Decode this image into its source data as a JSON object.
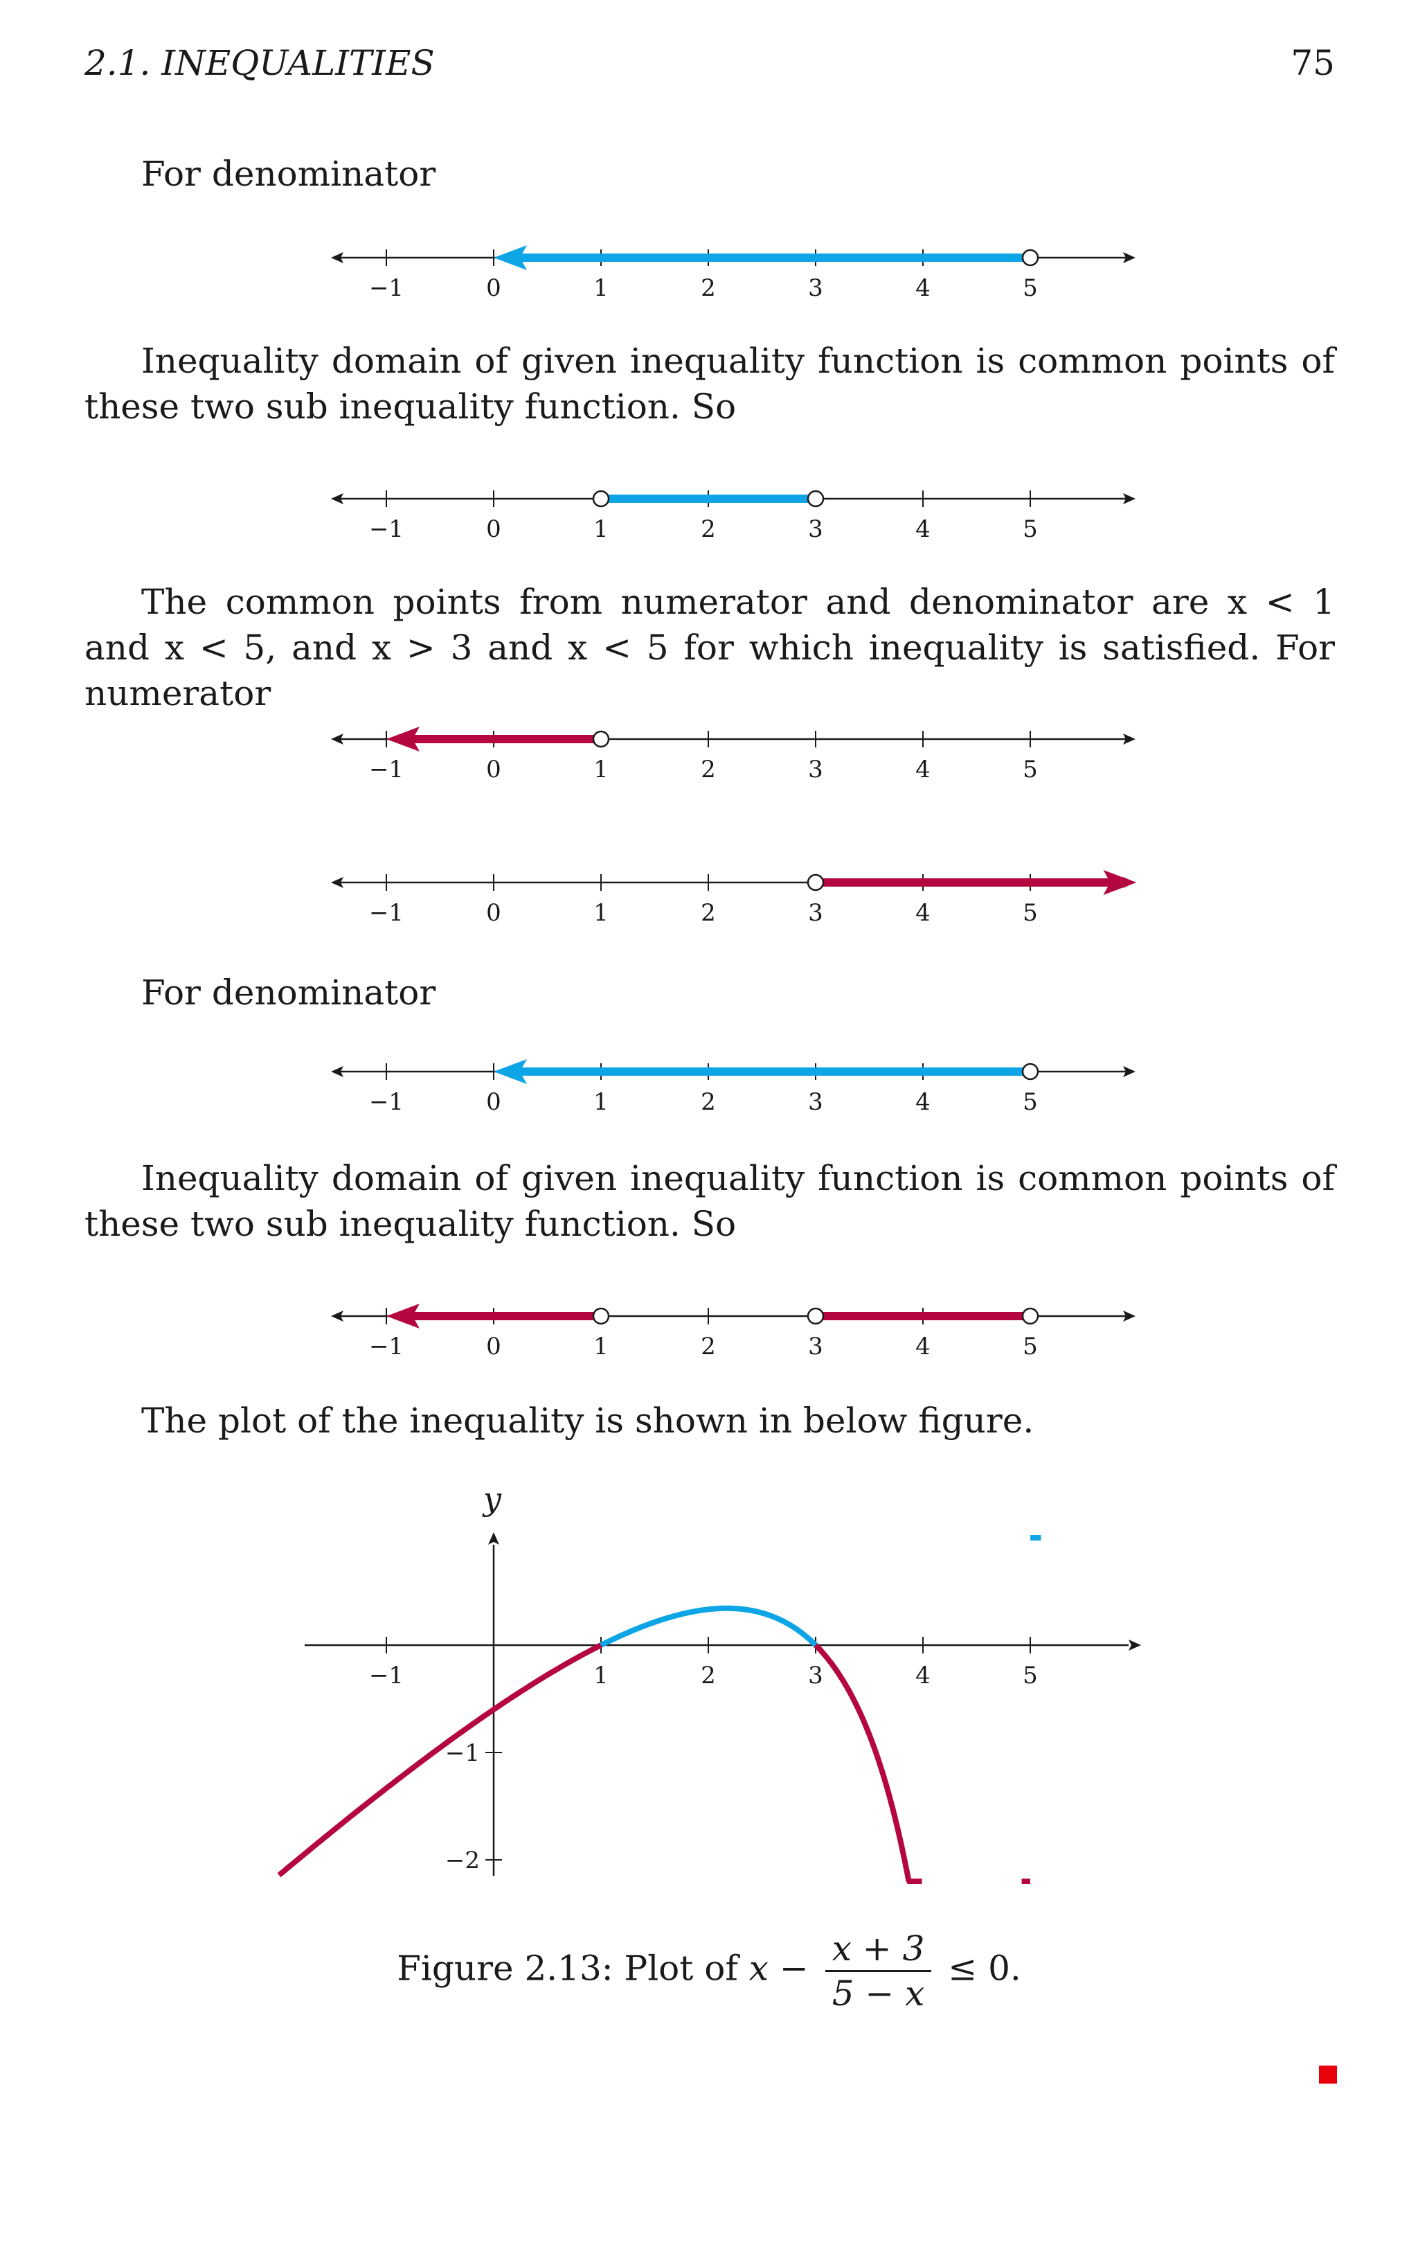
{
  "header": {
    "section": "2.1.  INEQUALITIES",
    "page_number": "75"
  },
  "paragraphs": {
    "p1": "For denominator",
    "p2": "Inequality domain of given inequality function is common points of these two sub inequality function. So",
    "p3": "The common points from numerator and denominator are x < 1 and x < 5, and x > 3 and x < 5 for which inequality is satisfied. For numerator",
    "p4": "For denominator",
    "p5": "Inequality domain of given inequality function is common points of these two sub inequality function. So",
    "p6": "The plot of the inequality is shown in below figure."
  },
  "number_line_ticks": [
    "−1",
    "0",
    "1",
    "2",
    "3",
    "4",
    "5"
  ],
  "colors": {
    "blue": "#0ea5e6",
    "red": "#b5073f",
    "qed": "#e8000b"
  },
  "number_lines": [
    {
      "id": "nl1",
      "color": "blue",
      "segments": [
        {
          "from": 0,
          "to": 5,
          "arrow_left": true,
          "open_right": true
        }
      ]
    },
    {
      "id": "nl2",
      "color": "blue",
      "segments": [
        {
          "from": 1,
          "to": 3,
          "open_left": true,
          "open_right": true
        }
      ]
    },
    {
      "id": "nl3",
      "color": "red",
      "segments": [
        {
          "from": -1,
          "to": 1,
          "arrow_left": true,
          "open_right": true
        }
      ]
    },
    {
      "id": "nl4",
      "color": "red",
      "segments": [
        {
          "from": 3,
          "to": 5.99,
          "arrow_right": true,
          "open_left": true
        }
      ]
    },
    {
      "id": "nl5",
      "color": "blue",
      "segments": [
        {
          "from": 0,
          "to": 5,
          "arrow_left": true,
          "open_right": true
        }
      ]
    },
    {
      "id": "nl6",
      "color": "red",
      "segments": [
        {
          "from": -1,
          "to": 1,
          "arrow_left": true,
          "open_right": true
        },
        {
          "from": 3,
          "to": 5,
          "open_left": true,
          "open_right": true
        }
      ]
    }
  ],
  "chart_data": {
    "type": "line",
    "title": "",
    "xlabel": "",
    "ylabel": "y",
    "x_ticks": [
      "−1",
      "1",
      "2",
      "3",
      "4",
      "5"
    ],
    "y_ticks": [
      "−1",
      "−2"
    ],
    "xlim": [
      -2,
      6
    ],
    "ylim": [
      -2.2,
      1
    ],
    "function": "x - (x+3)/(5-x)",
    "series": [
      {
        "color": "red",
        "x_range": [
          -2,
          1
        ],
        "note": "f <= 0"
      },
      {
        "color": "blue",
        "x_range": [
          1,
          3
        ],
        "note": "f > 0"
      },
      {
        "color": "red",
        "x_range": [
          3,
          3.99
        ],
        "note": "f <= 0"
      },
      {
        "color": "red",
        "x_range": [
          4.92,
          5
        ],
        "note": "f <= 0"
      },
      {
        "color": "blue",
        "x_range": [
          5,
          5.1
        ],
        "note": "f > 0"
      }
    ]
  },
  "caption": {
    "prefix": "Figure 2.13: Plot of ",
    "var": "x −",
    "numerator": "x + 3",
    "denominator": "5 − x",
    "suffix": "≤ 0."
  }
}
